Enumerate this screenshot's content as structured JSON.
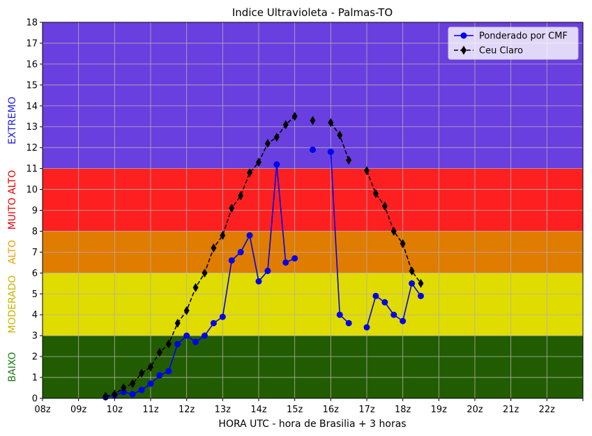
{
  "chart_data": {
    "type": "line",
    "title": "Indice Ultravioleta - Palmas-TO",
    "xlabel": "HORA UTC - hora de Brasilia + 3 horas",
    "ylabel": "",
    "xlim": [
      8,
      23
    ],
    "ylim": [
      0,
      18
    ],
    "xticks": [
      8,
      9,
      10,
      11,
      12,
      13,
      14,
      15,
      16,
      17,
      18,
      19,
      20,
      21,
      22,
      23
    ],
    "xtick_labels": [
      "08z",
      "09z",
      "10z",
      "11z",
      "12z",
      "13z",
      "14z",
      "15z",
      "16z",
      "17z",
      "18z",
      "19z",
      "20z",
      "21z",
      "22z",
      ""
    ],
    "yticks": [
      0,
      1,
      2,
      3,
      4,
      5,
      6,
      7,
      8,
      9,
      10,
      11,
      12,
      13,
      14,
      15,
      16,
      17,
      18
    ],
    "grid": true,
    "legend_position": "top-right",
    "bands": [
      {
        "label": "BAIXO",
        "from": 0,
        "to": 3,
        "fill": "#225c00",
        "label_color": "#1a7a1a"
      },
      {
        "label": "MODERADO",
        "from": 3,
        "to": 6,
        "fill": "#e0dc00",
        "label_color": "#c8b400"
      },
      {
        "label": "ALTO",
        "from": 6,
        "to": 8,
        "fill": "#e07c00",
        "label_color": "#f0a000"
      },
      {
        "label": "MUITO ALTO",
        "from": 8,
        "to": 11,
        "fill": "#fe2020",
        "label_color": "#e80000"
      },
      {
        "label": "EXTREMO",
        "from": 11,
        "to": 18,
        "fill": "#6a3fe0",
        "label_color": "#1e1ee0"
      }
    ],
    "series": [
      {
        "name": "Ponderado por CMF",
        "color": "#0000ee",
        "marker": "circle",
        "linestyle": "solid",
        "segments": [
          [
            [
              9.75,
              0.05
            ],
            [
              10.0,
              0.15
            ],
            [
              10.25,
              0.3
            ],
            [
              10.5,
              0.2
            ],
            [
              10.75,
              0.4
            ],
            [
              11.0,
              0.7
            ],
            [
              11.25,
              1.1
            ],
            [
              11.5,
              1.3
            ],
            [
              11.75,
              2.6
            ],
            [
              12.0,
              3.0
            ],
            [
              12.25,
              2.7
            ],
            [
              12.5,
              3.0
            ],
            [
              12.75,
              3.6
            ],
            [
              13.0,
              3.9
            ],
            [
              13.25,
              6.6
            ],
            [
              13.5,
              7.0
            ],
            [
              13.75,
              7.8
            ],
            [
              14.0,
              5.6
            ],
            [
              14.25,
              6.1
            ],
            [
              14.5,
              11.2
            ],
            [
              14.75,
              6.5
            ],
            [
              15.0,
              6.7
            ]
          ],
          [
            [
              15.5,
              11.9
            ]
          ],
          [
            [
              16.0,
              11.8
            ],
            [
              16.25,
              4.0
            ],
            [
              16.5,
              3.6
            ]
          ],
          [
            [
              17.0,
              3.4
            ],
            [
              17.25,
              4.9
            ],
            [
              17.5,
              4.6
            ],
            [
              17.75,
              4.0
            ],
            [
              18.0,
              3.7
            ],
            [
              18.25,
              5.5
            ],
            [
              18.5,
              4.9
            ]
          ]
        ]
      },
      {
        "name": "Ceu Claro",
        "color": "#000000",
        "marker": "diamond",
        "linestyle": "dashed",
        "segments": [
          [
            [
              9.75,
              0.1
            ],
            [
              10.0,
              0.2
            ],
            [
              10.25,
              0.5
            ],
            [
              10.5,
              0.7
            ],
            [
              10.75,
              1.2
            ],
            [
              11.0,
              1.5
            ],
            [
              11.25,
              2.2
            ],
            [
              11.5,
              2.6
            ],
            [
              11.75,
              3.6
            ],
            [
              12.0,
              4.2
            ],
            [
              12.25,
              5.3
            ],
            [
              12.5,
              6.0
            ],
            [
              12.75,
              7.2
            ],
            [
              13.0,
              7.8
            ],
            [
              13.25,
              9.1
            ],
            [
              13.5,
              9.7
            ],
            [
              13.75,
              10.8
            ],
            [
              14.0,
              11.3
            ],
            [
              14.25,
              12.2
            ],
            [
              14.5,
              12.5
            ],
            [
              14.75,
              13.1
            ],
            [
              15.0,
              13.5
            ]
          ],
          [
            [
              15.5,
              13.3
            ]
          ],
          [
            [
              16.0,
              13.2
            ],
            [
              16.25,
              12.6
            ],
            [
              16.5,
              11.4
            ]
          ],
          [
            [
              17.0,
              10.9
            ],
            [
              17.25,
              9.8
            ],
            [
              17.5,
              9.2
            ],
            [
              17.75,
              8.0
            ],
            [
              18.0,
              7.4
            ],
            [
              18.25,
              6.1
            ],
            [
              18.5,
              5.5
            ]
          ]
        ]
      }
    ]
  }
}
